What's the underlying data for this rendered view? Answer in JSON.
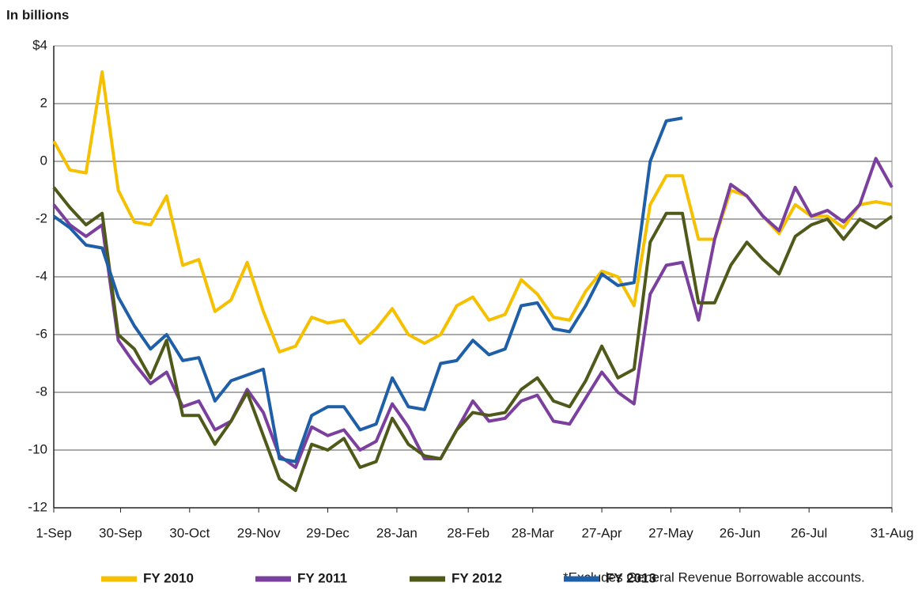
{
  "chart_data": {
    "type": "line",
    "y_label": "In billions",
    "note": "*Excludes General Revenue Borrowable accounts.",
    "x": [
      0,
      7,
      14,
      21,
      28,
      35,
      42,
      49,
      56,
      63,
      70,
      77,
      84,
      91,
      98,
      105,
      112,
      119,
      126,
      133,
      140,
      147,
      154,
      161,
      168,
      175,
      182,
      189,
      196,
      203,
      210,
      217,
      224,
      231,
      238,
      245,
      252,
      259,
      266,
      273,
      280,
      287,
      294,
      301,
      308,
      315,
      322,
      329,
      336,
      343,
      350,
      357,
      364
    ],
    "xlim": [
      0,
      364
    ],
    "xticks": [
      {
        "value": 0,
        "label": "1-Sep"
      },
      {
        "value": 29,
        "label": "30-Sep"
      },
      {
        "value": 59,
        "label": "30-Oct"
      },
      {
        "value": 89,
        "label": "29-Nov"
      },
      {
        "value": 119,
        "label": "29-Dec"
      },
      {
        "value": 149,
        "label": "28-Jan"
      },
      {
        "value": 180,
        "label": "28-Feb"
      },
      {
        "value": 208,
        "label": "28-Mar"
      },
      {
        "value": 238,
        "label": "27-Apr"
      },
      {
        "value": 268,
        "label": "27-May"
      },
      {
        "value": 298,
        "label": "26-Jun"
      },
      {
        "value": 328,
        "label": "26-Jul"
      },
      {
        "value": 364,
        "label": "31-Aug"
      }
    ],
    "ylim": [
      -12,
      4
    ],
    "yticks": [
      {
        "value": 4,
        "label": "$4"
      },
      2,
      0,
      -2,
      -4,
      -6,
      -8,
      -10,
      -12
    ],
    "grid": true,
    "series": [
      {
        "name": "FY 2010",
        "color": "#f5c000",
        "values": [
          0.7,
          -0.3,
          -0.4,
          3.1,
          -1.0,
          -2.1,
          -2.2,
          -1.2,
          -3.6,
          -3.4,
          -5.2,
          -4.8,
          -3.5,
          -5.2,
          -6.6,
          -6.4,
          -5.4,
          -5.6,
          -5.5,
          -6.3,
          -5.8,
          -5.1,
          -6.0,
          -6.3,
          -6.0,
          -5.0,
          -4.7,
          -5.5,
          -5.3,
          -4.1,
          -4.6,
          -5.4,
          -5.5,
          -4.5,
          -3.8,
          -4.0,
          -5.0,
          -1.5,
          -0.5,
          -0.5,
          -2.7,
          -2.7,
          -1.0,
          -1.2,
          -1.9,
          -2.5,
          -1.5,
          -1.9,
          -1.9,
          -2.3,
          -1.5,
          -1.4,
          -1.5
        ]
      },
      {
        "name": "FY 2011",
        "color": "#7b3f9e",
        "values": [
          -1.5,
          -2.2,
          -2.6,
          -2.2,
          -6.2,
          -7.0,
          -7.7,
          -7.3,
          -8.5,
          -8.3,
          -9.3,
          -9.0,
          -7.9,
          -8.7,
          -10.2,
          -10.6,
          -9.2,
          -9.5,
          -9.3,
          -10.0,
          -9.7,
          -8.4,
          -9.2,
          -10.3,
          -10.3,
          -9.3,
          -8.3,
          -9.0,
          -8.9,
          -8.3,
          -8.1,
          -9.0,
          -9.1,
          -8.2,
          -7.3,
          -8.0,
          -8.4,
          -4.6,
          -3.6,
          -3.5,
          -5.5,
          -2.7,
          -0.8,
          -1.2,
          -1.9,
          -2.4,
          -0.9,
          -1.9,
          -1.7,
          -2.1,
          -1.5,
          0.1,
          -0.9
        ]
      },
      {
        "name": "FY 2012",
        "color": "#4f5a1a",
        "values": [
          -0.9,
          -1.6,
          -2.2,
          -1.8,
          -6.0,
          -6.5,
          -7.5,
          -6.2,
          -8.8,
          -8.8,
          -9.8,
          -9.0,
          -8.0,
          -9.5,
          -11.0,
          -11.4,
          -9.8,
          -10.0,
          -9.6,
          -10.6,
          -10.4,
          -8.9,
          -9.8,
          -10.2,
          -10.3,
          -9.3,
          -8.7,
          -8.8,
          -8.7,
          -7.9,
          -7.5,
          -8.3,
          -8.5,
          -7.6,
          -6.4,
          -7.5,
          -7.2,
          -2.8,
          -1.8,
          -1.8,
          -4.9,
          -4.9,
          -3.6,
          -2.8,
          -3.4,
          -3.9,
          -2.6,
          -2.2,
          -2.0,
          -2.7,
          -2.0,
          -2.3,
          -1.9
        ]
      },
      {
        "name": "FY 2013",
        "color": "#1f5fa8",
        "values": [
          -1.9,
          -2.3,
          -2.9,
          -3.0,
          -4.7,
          -5.7,
          -6.5,
          -6.0,
          -6.9,
          -6.8,
          -8.3,
          -7.6,
          -7.4,
          -7.2,
          -10.3,
          -10.4,
          -8.8,
          -8.5,
          -8.5,
          -9.3,
          -9.1,
          -7.5,
          -8.5,
          -8.6,
          -7.0,
          -6.9,
          -6.2,
          -6.7,
          -6.5,
          -5.0,
          -4.9,
          -5.8,
          -5.9,
          -5.0,
          -3.9,
          -4.3,
          -4.2,
          0.0,
          1.4,
          1.5,
          null,
          null,
          null,
          null,
          null,
          null,
          null,
          null,
          null,
          null,
          null,
          null,
          null
        ]
      }
    ]
  }
}
